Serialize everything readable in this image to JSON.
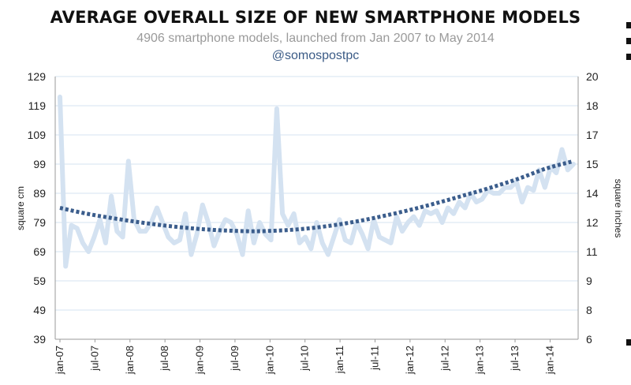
{
  "chart_data": {
    "type": "line",
    "title": "AVERAGE OVERALL SIZE OF NEW SMARTPHONE MODELS",
    "subtitle": "4906 smartphone models, launched from Jan 2007 to May 2014",
    "handle": "@somospostpc",
    "ylabel": "square cm",
    "y2label": "square inches",
    "ylim": [
      39,
      129
    ],
    "y2lim": [
      6,
      20
    ],
    "yticks": [
      "129",
      "119",
      "109",
      "99",
      "89",
      "79",
      "69",
      "59",
      "49",
      "39"
    ],
    "y2ticks": [
      "20",
      "18",
      "17",
      "15",
      "14",
      "12",
      "11",
      "9",
      "8",
      "6"
    ],
    "xticks": [
      "jan-07",
      "jul-07",
      "jan-08",
      "jul-08",
      "jan-09",
      "jul-09",
      "jan-10",
      "jul-10",
      "jan-11",
      "jul-11",
      "jan-12",
      "jul-12",
      "jan-13",
      "jul-13",
      "jan-14"
    ],
    "grid": true,
    "colors": {
      "monthly": "#d4e2f1",
      "trend": "#3b5d8c",
      "grid": "#d6e3f0"
    },
    "series": [
      {
        "style": "solid-light",
        "x_start": "jan-07",
        "step": "month",
        "values": [
          122,
          64,
          78,
          77,
          72,
          69,
          74,
          80,
          72,
          88,
          76,
          74,
          100,
          80,
          76,
          76,
          79,
          84,
          79,
          74,
          72,
          73,
          82,
          68,
          75,
          85,
          79,
          71,
          76,
          80,
          79,
          75,
          68,
          83,
          72,
          79,
          75,
          73,
          118,
          82,
          78,
          82,
          72,
          74,
          70,
          79,
          72,
          68,
          74,
          80,
          73,
          72,
          79,
          75,
          70,
          80,
          74,
          73,
          72,
          81,
          76,
          79,
          81,
          78,
          83,
          82,
          83,
          79,
          84,
          82,
          86,
          84,
          89,
          86,
          87,
          90,
          89,
          89,
          91,
          91,
          93,
          86,
          91,
          90,
          97,
          91,
          98,
          96,
          104,
          97,
          99
        ]
      },
      {
        "style": "dotted-trend",
        "x_start": "jan-07",
        "step": "month",
        "values": [
          84,
          82,
          80.4,
          79,
          77.8,
          76.9,
          76.3,
          76,
          76.2,
          76.8,
          77.9,
          79.4,
          81.3,
          83.4,
          85.8,
          88.4,
          91.1,
          94.1,
          97.5,
          100
        ]
      }
    ]
  }
}
